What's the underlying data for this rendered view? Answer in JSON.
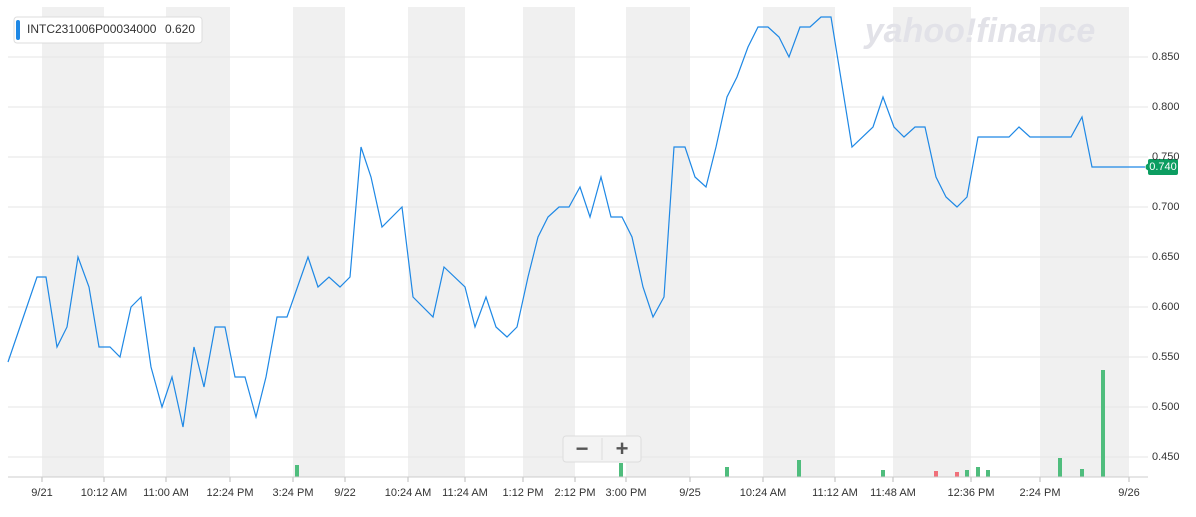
{
  "chart_data": {
    "type": "line",
    "legend_label": "INTC231006P00034000",
    "legend_value": "0.620",
    "last_value_label": "0.740",
    "watermark": "yahoo!finance",
    "zoom_out": "−",
    "zoom_in": "+",
    "xlim": [
      0,
      1140
    ],
    "ylim": [
      0.43,
      0.9
    ],
    "xticks": [
      {
        "value": 34,
        "label": "9/21"
      },
      {
        "value": 96,
        "label": "10:12 AM"
      },
      {
        "value": 158,
        "label": "11:00 AM"
      },
      {
        "value": 222,
        "label": "12:24 PM"
      },
      {
        "value": 285,
        "label": "3:24 PM"
      },
      {
        "value": 337,
        "label": "9/22"
      },
      {
        "value": 400,
        "label": "10:24 AM"
      },
      {
        "value": 457,
        "label": "11:24 AM"
      },
      {
        "value": 515,
        "label": "1:12 PM"
      },
      {
        "value": 567,
        "label": "2:12 PM"
      },
      {
        "value": 618,
        "label": "3:00 PM"
      },
      {
        "value": 682,
        "label": "9/25"
      },
      {
        "value": 755,
        "label": "10:24 AM"
      },
      {
        "value": 827,
        "label": "11:12 AM"
      },
      {
        "value": 885,
        "label": "11:48 AM"
      },
      {
        "value": 963,
        "label": "12:36 PM"
      },
      {
        "value": 1032,
        "label": "2:24 PM"
      },
      {
        "value": 1121,
        "label": "9/26"
      }
    ],
    "yticks": [
      {
        "value": 0.45,
        "label": "0.450"
      },
      {
        "value": 0.5,
        "label": "0.500"
      },
      {
        "value": 0.55,
        "label": "0.550"
      },
      {
        "value": 0.6,
        "label": "0.600"
      },
      {
        "value": 0.65,
        "label": "0.650"
      },
      {
        "value": 0.7,
        "label": "0.700"
      },
      {
        "value": 0.75,
        "label": "0.750"
      },
      {
        "value": 0.8,
        "label": "0.800"
      },
      {
        "value": 0.85,
        "label": "0.850"
      }
    ],
    "grid": true,
    "shade_color": "#f0f0f0",
    "series": [
      {
        "name": "INTC231006P00034000",
        "color": "#1e88e5",
        "x": [
          0,
          29,
          38,
          49,
          59,
          70,
          81,
          91,
          102,
          112,
          123,
          133,
          143,
          154,
          164,
          175,
          186,
          196,
          207,
          217,
          227,
          237,
          248,
          258,
          269,
          279,
          300,
          310,
          321,
          332,
          342,
          353,
          363,
          374,
          394,
          405,
          425,
          436,
          457,
          467,
          478,
          488,
          499,
          509,
          520,
          530,
          540,
          551,
          561,
          572,
          582,
          593,
          603,
          614,
          624,
          635,
          645,
          656,
          666,
          677,
          687,
          698,
          708,
          719,
          729,
          740,
          750,
          760,
          771,
          781,
          792,
          802,
          813,
          823,
          844,
          865,
          875,
          886,
          896,
          907,
          917,
          928,
          938,
          949,
          959,
          970,
          980,
          1001,
          1011,
          1022,
          1063,
          1074,
          1084,
          1137
        ],
        "values": [
          0.545,
          0.63,
          0.63,
          0.56,
          0.58,
          0.65,
          0.62,
          0.56,
          0.56,
          0.55,
          0.6,
          0.61,
          0.54,
          0.5,
          0.53,
          0.48,
          0.56,
          0.52,
          0.58,
          0.58,
          0.53,
          0.53,
          0.49,
          0.53,
          0.59,
          0.59,
          0.65,
          0.62,
          0.63,
          0.62,
          0.63,
          0.76,
          0.73,
          0.68,
          0.7,
          0.61,
          0.59,
          0.64,
          0.62,
          0.58,
          0.61,
          0.58,
          0.57,
          0.58,
          0.63,
          0.67,
          0.69,
          0.7,
          0.7,
          0.72,
          0.69,
          0.73,
          0.69,
          0.69,
          0.67,
          0.62,
          0.59,
          0.61,
          0.76,
          0.76,
          0.73,
          0.72,
          0.76,
          0.81,
          0.83,
          0.86,
          0.88,
          0.88,
          0.87,
          0.85,
          0.88,
          0.88,
          0.89,
          0.89,
          0.76,
          0.78,
          0.81,
          0.78,
          0.77,
          0.78,
          0.78,
          0.73,
          0.71,
          0.7,
          0.71,
          0.77,
          0.77,
          0.77,
          0.78,
          0.77,
          0.77,
          0.79,
          0.74,
          0.74
        ]
      }
    ],
    "volume": [
      {
        "color": "#4fbd7d",
        "x": [
          289,
          613,
          719,
          791,
          875,
          959,
          970,
          980,
          1052,
          1074,
          1095
        ],
        "values": [
          12,
          14,
          10,
          17,
          7,
          7,
          10,
          7,
          19,
          8,
          107
        ]
      },
      {
        "color": "#f0707a",
        "x": [
          928,
          949
        ],
        "values": [
          6,
          5
        ]
      }
    ]
  }
}
